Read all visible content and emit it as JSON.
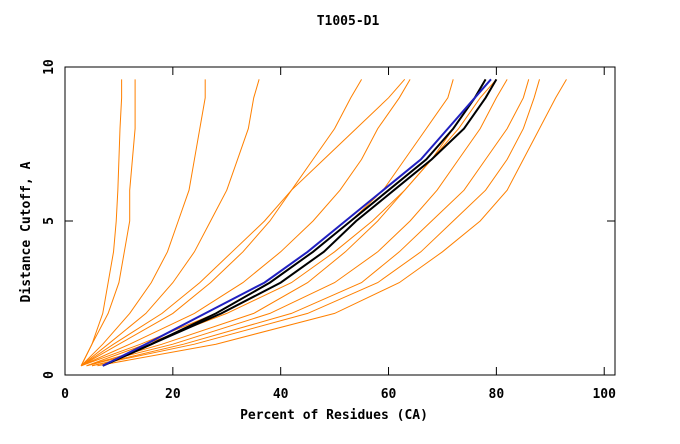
{
  "chart_data": {
    "type": "line",
    "title": "T1005-D1",
    "x_label": "Percent of Residues (CA)",
    "y_label": "Distance Cutoff, A",
    "xlim": [
      0,
      102
    ],
    "ylim": [
      0,
      10
    ],
    "xticks": [
      0,
      20,
      40,
      60,
      80,
      100
    ],
    "yticks": [
      0,
      5,
      10
    ],
    "y": [
      0.3,
      1,
      2,
      3,
      4,
      5,
      6,
      7,
      8,
      9,
      9.6
    ],
    "series": [
      {
        "color": "#ff8000",
        "x": [
          3,
          5,
          7,
          8,
          9,
          9.5,
          9.8,
          10,
          10.2,
          10.5,
          10.5
        ]
      },
      {
        "color": "#ff8000",
        "x": [
          3,
          5,
          8,
          10,
          11,
          12,
          12,
          12.5,
          13,
          13,
          13
        ]
      },
      {
        "color": "#ff8000",
        "x": [
          3,
          7,
          12,
          16,
          19,
          21,
          23,
          24,
          25,
          26,
          26
        ]
      },
      {
        "color": "#ff8000",
        "x": [
          3,
          8,
          15,
          20,
          24,
          27,
          30,
          32,
          34,
          35,
          36
        ]
      },
      {
        "color": "#ff8000",
        "x": [
          3,
          9,
          18,
          25,
          31,
          37,
          42,
          48,
          54,
          60,
          63
        ]
      },
      {
        "color": "#ff8000",
        "x": [
          3,
          10,
          20,
          27,
          33,
          38,
          42,
          46,
          50,
          53,
          55
        ]
      },
      {
        "color": "#ff8000",
        "x": [
          3,
          12,
          24,
          33,
          40,
          46,
          51,
          55,
          58,
          62,
          64
        ]
      },
      {
        "color": "#ff8000",
        "x": [
          3,
          14,
          28,
          38,
          46,
          53,
          59,
          63,
          67,
          71,
          72
        ]
      },
      {
        "color": "#ff8000",
        "x": [
          4,
          15,
          30,
          42,
          50,
          57,
          63,
          68,
          73,
          77,
          80
        ]
      },
      {
        "color": "#ff8000",
        "x": [
          4,
          18,
          35,
          45,
          52,
          58,
          63,
          68,
          72,
          76,
          78
        ]
      },
      {
        "color": "#ff8000",
        "x": [
          4,
          20,
          38,
          50,
          58,
          64,
          69,
          73,
          77,
          80,
          82
        ]
      },
      {
        "color": "#ff8000",
        "x": [
          5,
          22,
          42,
          55,
          62,
          68,
          74,
          78,
          82,
          85,
          86
        ]
      },
      {
        "color": "#ff8000",
        "x": [
          5,
          24,
          45,
          58,
          66,
          72,
          78,
          82,
          85,
          87,
          88
        ]
      },
      {
        "color": "#ff8000",
        "x": [
          6,
          28,
          50,
          62,
          70,
          77,
          82,
          85,
          88,
          91,
          93
        ]
      },
      {
        "color": "#000000",
        "x": [
          7,
          16,
          28,
          38,
          46,
          53,
          60,
          67,
          72,
          76,
          78
        ]
      },
      {
        "color": "#000000",
        "x": [
          7,
          16,
          29,
          40,
          48,
          54,
          61,
          68,
          74,
          78,
          80
        ]
      },
      {
        "color": "#2020c0",
        "x": [
          7,
          15,
          26,
          37,
          45,
          52,
          59,
          66,
          71,
          76,
          79
        ]
      }
    ]
  }
}
